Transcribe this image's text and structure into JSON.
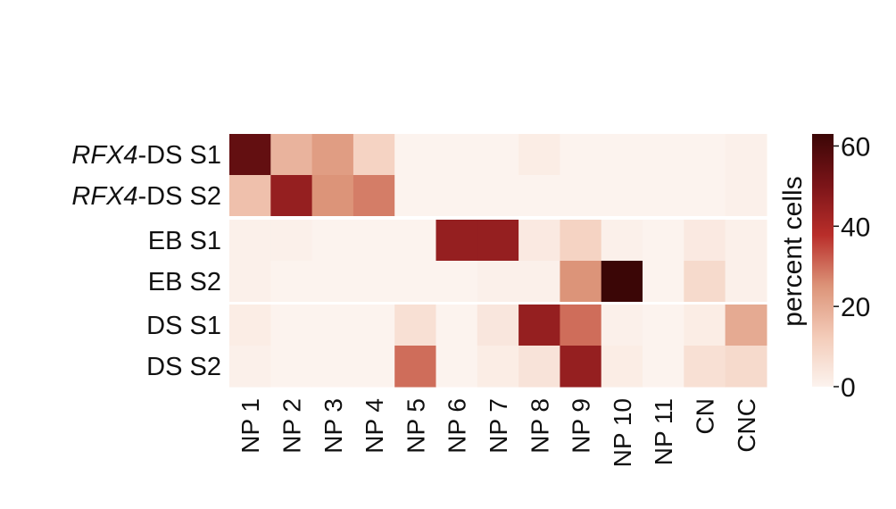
{
  "chart_data": {
    "type": "heatmap",
    "rows": [
      {
        "prefix": "RFX4",
        "suffix": "-DS S1"
      },
      {
        "prefix": "RFX4",
        "suffix": "-DS S2"
      },
      {
        "prefix": "",
        "suffix": "EB S1"
      },
      {
        "prefix": "",
        "suffix": "EB S2"
      },
      {
        "prefix": "",
        "suffix": "DS S1"
      },
      {
        "prefix": "",
        "suffix": "DS S2"
      }
    ],
    "columns": [
      "NP 1",
      "NP 2",
      "NP 3",
      "NP 4",
      "NP 5",
      "NP 6",
      "NP 7",
      "NP 8",
      "NP 9",
      "NP 10",
      "NP 11",
      "CN",
      "CNC"
    ],
    "values": [
      [
        55,
        18,
        23,
        10,
        0,
        0,
        0,
        2,
        0,
        0,
        0,
        0,
        1
      ],
      [
        15,
        45,
        25,
        28,
        0,
        0,
        0,
        0,
        0,
        0,
        0,
        0,
        1
      ],
      [
        1,
        1,
        0,
        0,
        0,
        45,
        45,
        3,
        10,
        1,
        0,
        3,
        1
      ],
      [
        1,
        0,
        0,
        0,
        0,
        0,
        1,
        1,
        25,
        63,
        0,
        8,
        1
      ],
      [
        2,
        0,
        0,
        0,
        6,
        0,
        4,
        45,
        30,
        1,
        0,
        2,
        20
      ],
      [
        1,
        0,
        0,
        0,
        30,
        0,
        2,
        5,
        45,
        2,
        0,
        6,
        8
      ]
    ],
    "group_breaks_after_row": [
      1,
      3
    ],
    "colorbar": {
      "label": "percent cells",
      "min": 0,
      "max": 63,
      "ticks": [
        0,
        20,
        40,
        60
      ],
      "colormap": [
        "#fcf3ee",
        "#f3cbb8",
        "#dc9378",
        "#b92e2a",
        "#7a1418",
        "#3b0606"
      ]
    }
  }
}
